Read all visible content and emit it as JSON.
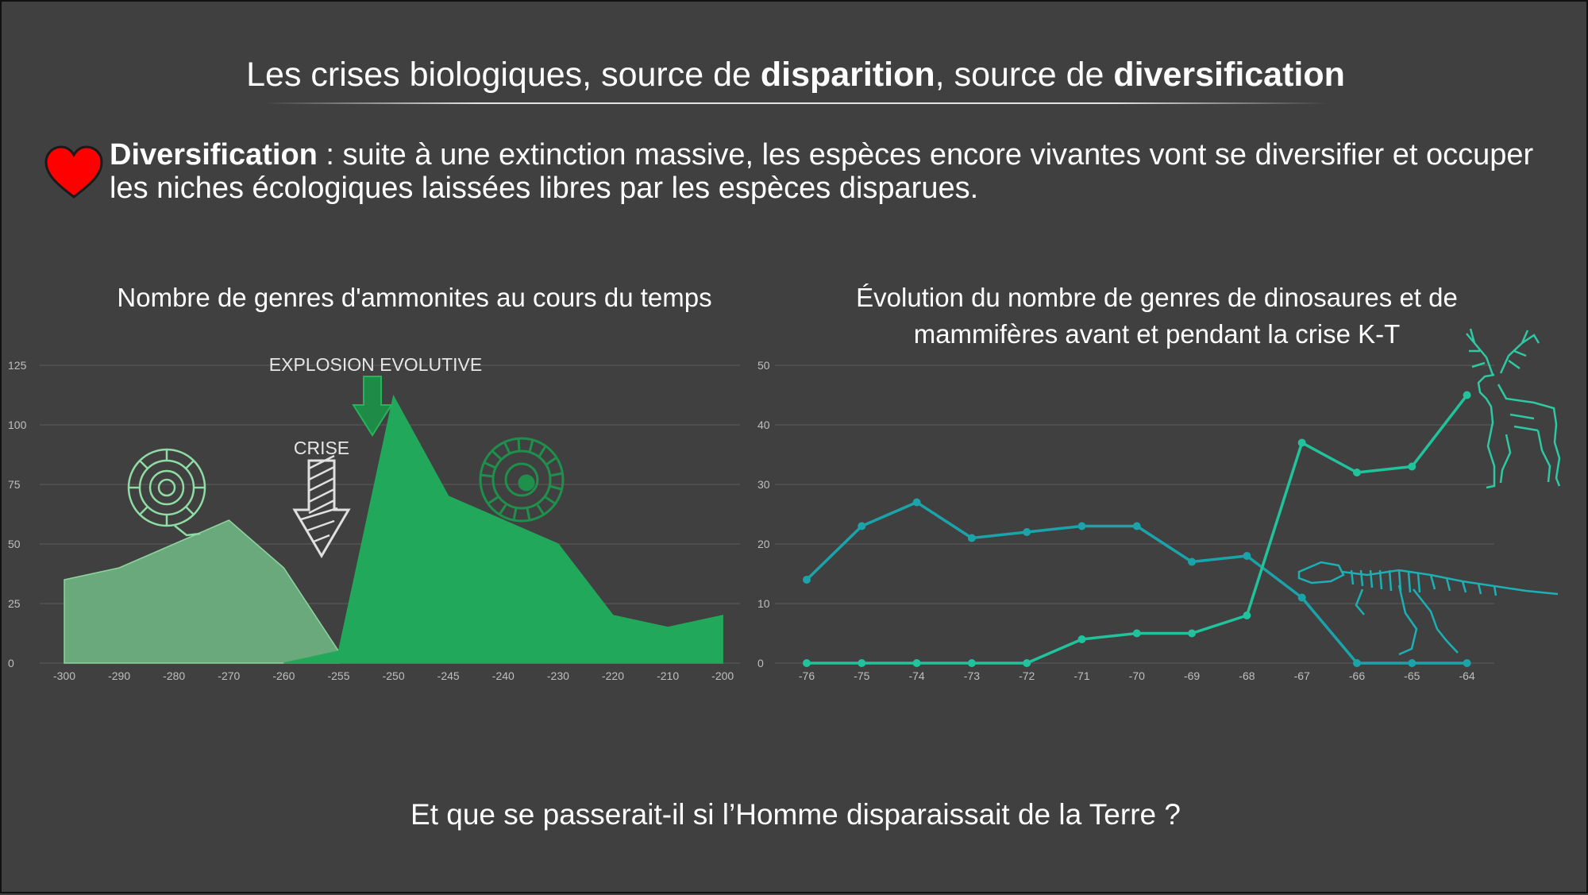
{
  "slide": {
    "title_plain_1": "Les crises biologiques, source de ",
    "title_bold_1": "disparition",
    "title_plain_2": ", source de ",
    "title_bold_2": "diversification",
    "para_bold": "Diversification",
    "para_text": " : suite à une extinction massive, les espèces encore vivantes vont se diversifier et occuper les niches écologiques laissées libres par les espèces disparues.",
    "question": "Et que se passerait-il si l’Homme disparaissait de la Terre ?",
    "colors": {
      "background": "#404040",
      "heart": "#ff0000",
      "ammonite_before": "#6db280",
      "ammonite_after": "#22a85a",
      "dino": "#1aa4aa",
      "mammals": "#20c39b"
    }
  },
  "chart_data": [
    {
      "type": "area",
      "title": "Nombre de genres d'ammonites au cours du temps",
      "x_labels": [
        "-300",
        "-290",
        "-280",
        "-270",
        "-260",
        "-255",
        "-250",
        "-245",
        "-240",
        "-230",
        "-220",
        "-210",
        "-200"
      ],
      "y_ticks": [
        "0",
        "25",
        "50",
        "75",
        "100",
        "125"
      ],
      "ylim": [
        0,
        125
      ],
      "grid": true,
      "series": [
        {
          "values": [
            35,
            40,
            50,
            60,
            40,
            5,
            null,
            null,
            null,
            null,
            null,
            null,
            null
          ],
          "color": "#6db280"
        },
        {
          "values": [
            null,
            null,
            null,
            null,
            0,
            5,
            112,
            70,
            60,
            50,
            20,
            15,
            20
          ],
          "color": "#22a85a"
        }
      ],
      "annotations": [
        {
          "text": "CRISE",
          "x": "-255"
        },
        {
          "text": "EXPLOSION EVOLUTIVE",
          "x": "-250"
        }
      ]
    },
    {
      "type": "line",
      "title": "Évolution du nombre de genres de dinosaures et de mammifères avant et pendant la crise K-T",
      "x_labels": [
        "-76",
        "-75",
        "-74",
        "-73",
        "-72",
        "-71",
        "-70",
        "-69",
        "-68",
        "-67",
        "-66",
        "-65",
        "-64"
      ],
      "y_ticks": [
        "0",
        "10",
        "20",
        "30",
        "40",
        "50"
      ],
      "ylim": [
        0,
        50
      ],
      "grid": true,
      "series": [
        {
          "values": [
            14,
            23,
            27,
            21,
            22,
            23,
            23,
            17,
            18,
            11,
            0,
            0,
            0
          ],
          "color": "#1aa4aa"
        },
        {
          "values": [
            0,
            0,
            0,
            0,
            0,
            4,
            5,
            5,
            8,
            37,
            32,
            33,
            45
          ],
          "color": "#20c39b"
        }
      ]
    }
  ],
  "icons": [
    "heart-icon",
    "ammonite-icon",
    "deer-icon",
    "dinosaur-skeleton-icon",
    "down-arrow-icon"
  ]
}
